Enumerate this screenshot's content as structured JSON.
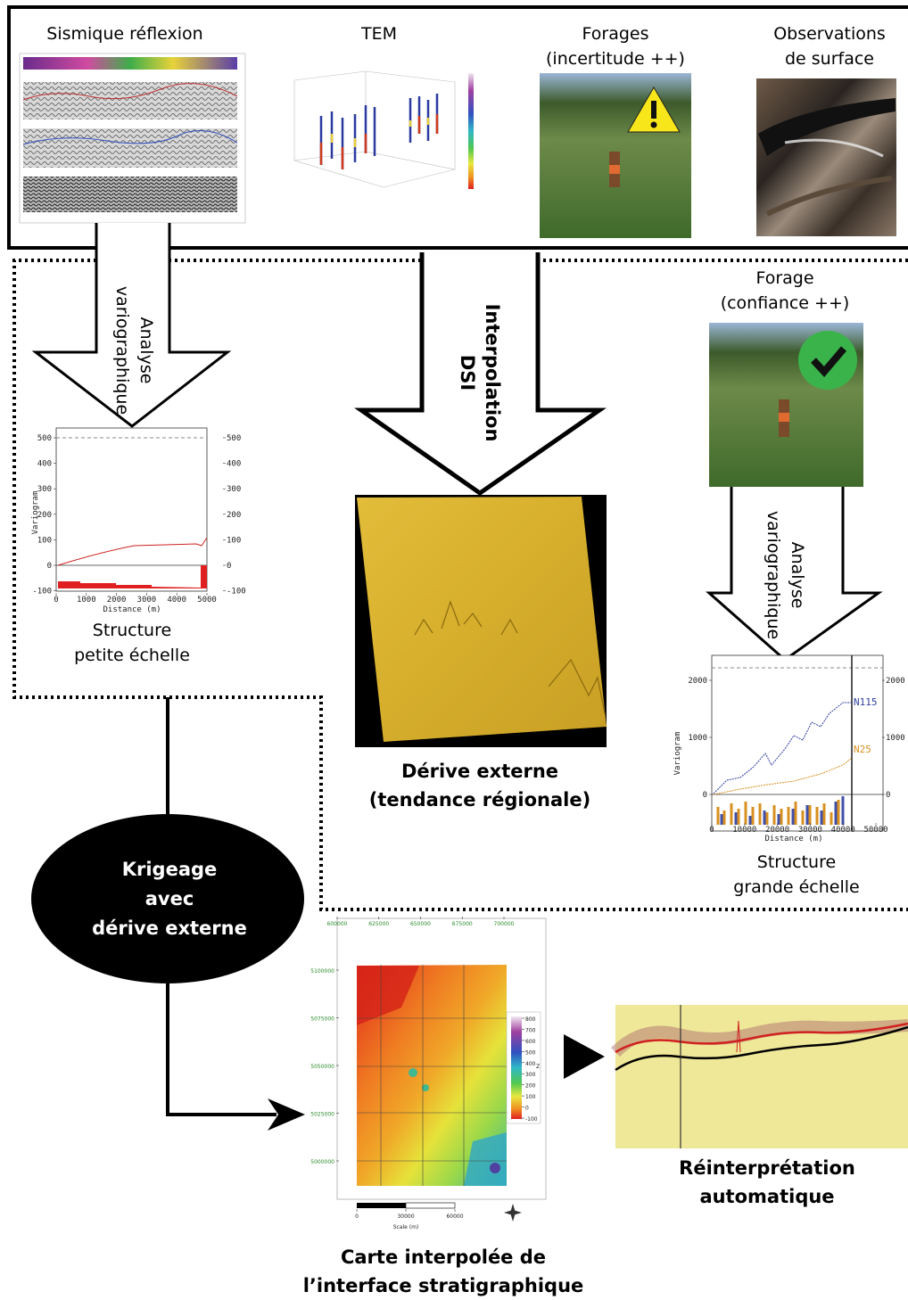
{
  "top_panel": {
    "items": [
      {
        "label_lines": [
          "Sismique réflexion"
        ]
      },
      {
        "label_lines": [
          "TEM"
        ]
      },
      {
        "label_lines": [
          "Forages",
          "(incertitude ++)"
        ]
      },
      {
        "label_lines": [
          "Observations",
          "de surface"
        ]
      }
    ]
  },
  "arrows": {
    "left": [
      "Analyse",
      "variographique"
    ],
    "center": [
      "Interpolation",
      "DSI"
    ],
    "right": [
      "Analyse",
      "variographique"
    ]
  },
  "borehole": {
    "label_lines": [
      "Forage",
      "(confiance ++)"
    ]
  },
  "small_scale_variogram": {
    "y_label": "Variogram",
    "x_label": "Distance (m)",
    "yticks": [
      500,
      400,
      300,
      200,
      100,
      0,
      -100
    ],
    "xticks": [
      0,
      1000,
      2000,
      3000,
      4000,
      5000
    ],
    "caption_lines": [
      "Structure",
      "petite échelle"
    ]
  },
  "large_scale_variogram": {
    "y_label": "Variogram",
    "x_label": "Distance (m)",
    "yticks": [
      2000,
      1000,
      0
    ],
    "xticks": [
      0,
      10000,
      20000,
      30000,
      40000,
      50000
    ],
    "series_labels": [
      "N115",
      "N25"
    ],
    "caption_lines": [
      "Structure",
      "grande échelle"
    ]
  },
  "external_drift": {
    "caption_lines": [
      "Dérive externe",
      "(tendance régionale)"
    ]
  },
  "kriging": {
    "label_lines": [
      "Krigeage",
      "avec",
      "dérive externe"
    ]
  },
  "map": {
    "xticks": [
      600000,
      625000,
      650000,
      675000,
      700000
    ],
    "yticks": [
      5100000,
      5075000,
      5050000,
      5025000,
      5000000
    ],
    "colorbar_ticks": [
      800,
      700,
      600,
      500,
      400,
      300,
      200,
      100,
      0,
      -100
    ],
    "colorbar_label": "Z",
    "scale_ticks": [
      0,
      30000,
      60000
    ],
    "scale_label": "Scale (m)",
    "caption_lines": [
      "Carte interpolée de",
      "l’interface stratigraphique"
    ]
  },
  "reinterpretation": {
    "caption_lines": [
      "Réinterprétation",
      "automatique"
    ]
  }
}
